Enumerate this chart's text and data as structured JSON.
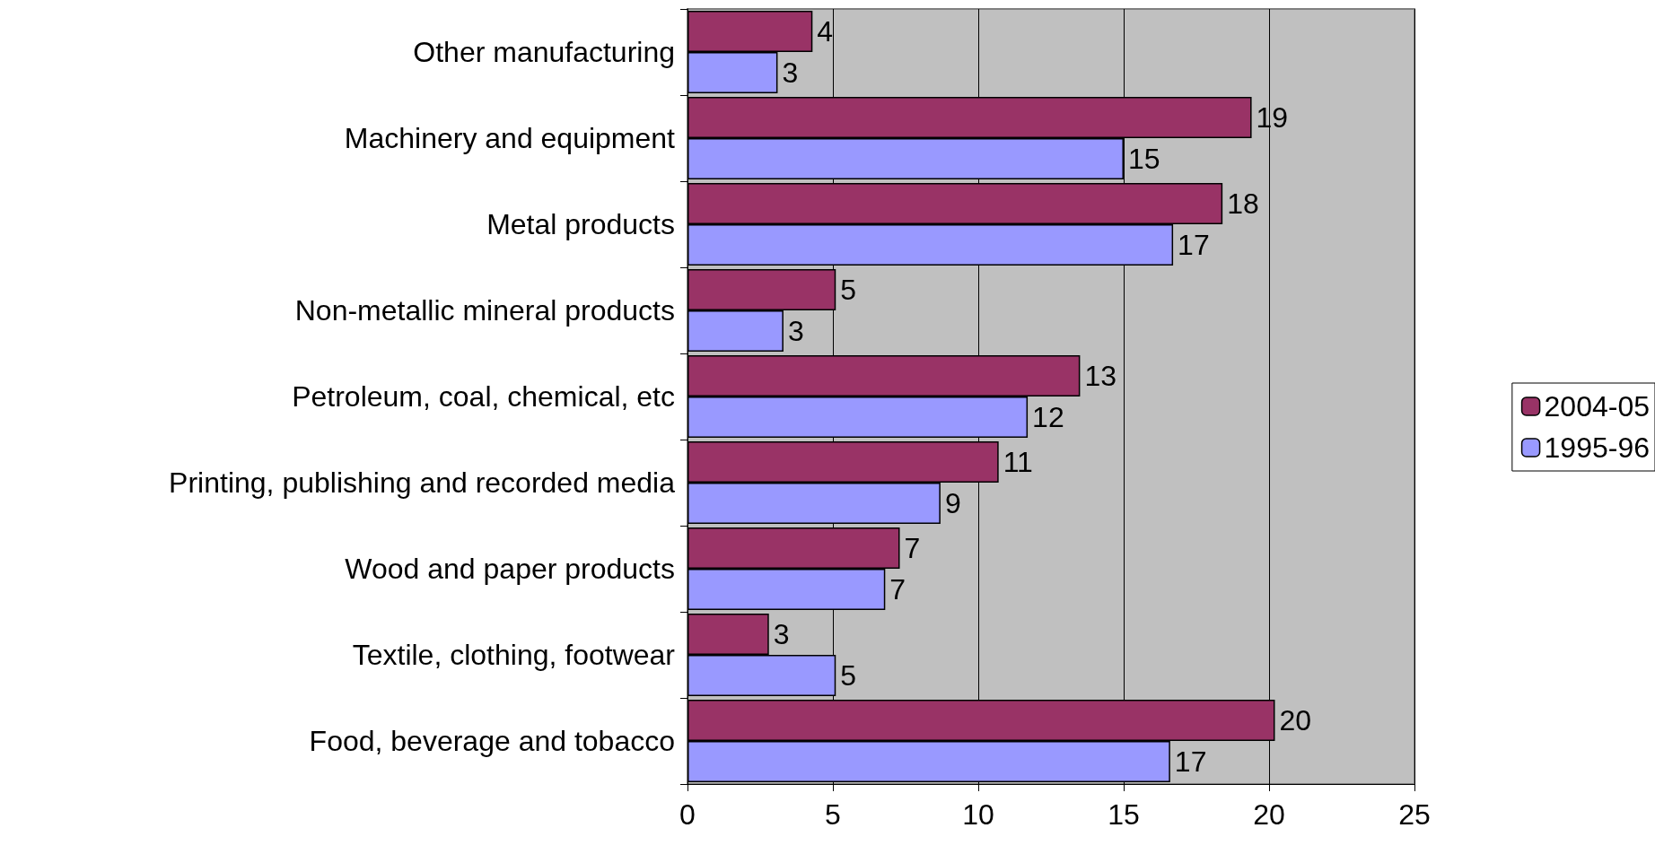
{
  "chart_data": {
    "type": "bar",
    "orientation": "horizontal",
    "categories": [
      "Other manufacturing",
      "Machinery and equipment",
      "Metal products",
      "Non-metallic mineral products",
      "Petroleum, coal, chemical, etc",
      "Printing, publishing and recorded media",
      "Wood and paper products",
      "Textile, clothing, footwear",
      "Food, beverage and tobacco"
    ],
    "series": [
      {
        "name": "2004-05",
        "color": "#993366",
        "values": [
          4.3,
          19.4,
          18.4,
          5.1,
          13.5,
          10.7,
          7.3,
          2.8,
          20.2
        ],
        "value_labels": [
          "4",
          "19",
          "18",
          "5",
          "13",
          "11",
          "7",
          "3",
          "20"
        ]
      },
      {
        "name": "1995-96",
        "color": "#9999ff",
        "values": [
          3.1,
          15.0,
          16.7,
          3.3,
          11.7,
          8.7,
          6.8,
          5.1,
          16.6
        ],
        "value_labels": [
          "3",
          "15",
          "17",
          "3",
          "12",
          "9",
          "7",
          "5",
          "17"
        ]
      }
    ],
    "xlim": [
      0,
      25
    ],
    "xticks": [
      0,
      5,
      10,
      15,
      20,
      25
    ],
    "grid": "x",
    "legend": "right"
  }
}
